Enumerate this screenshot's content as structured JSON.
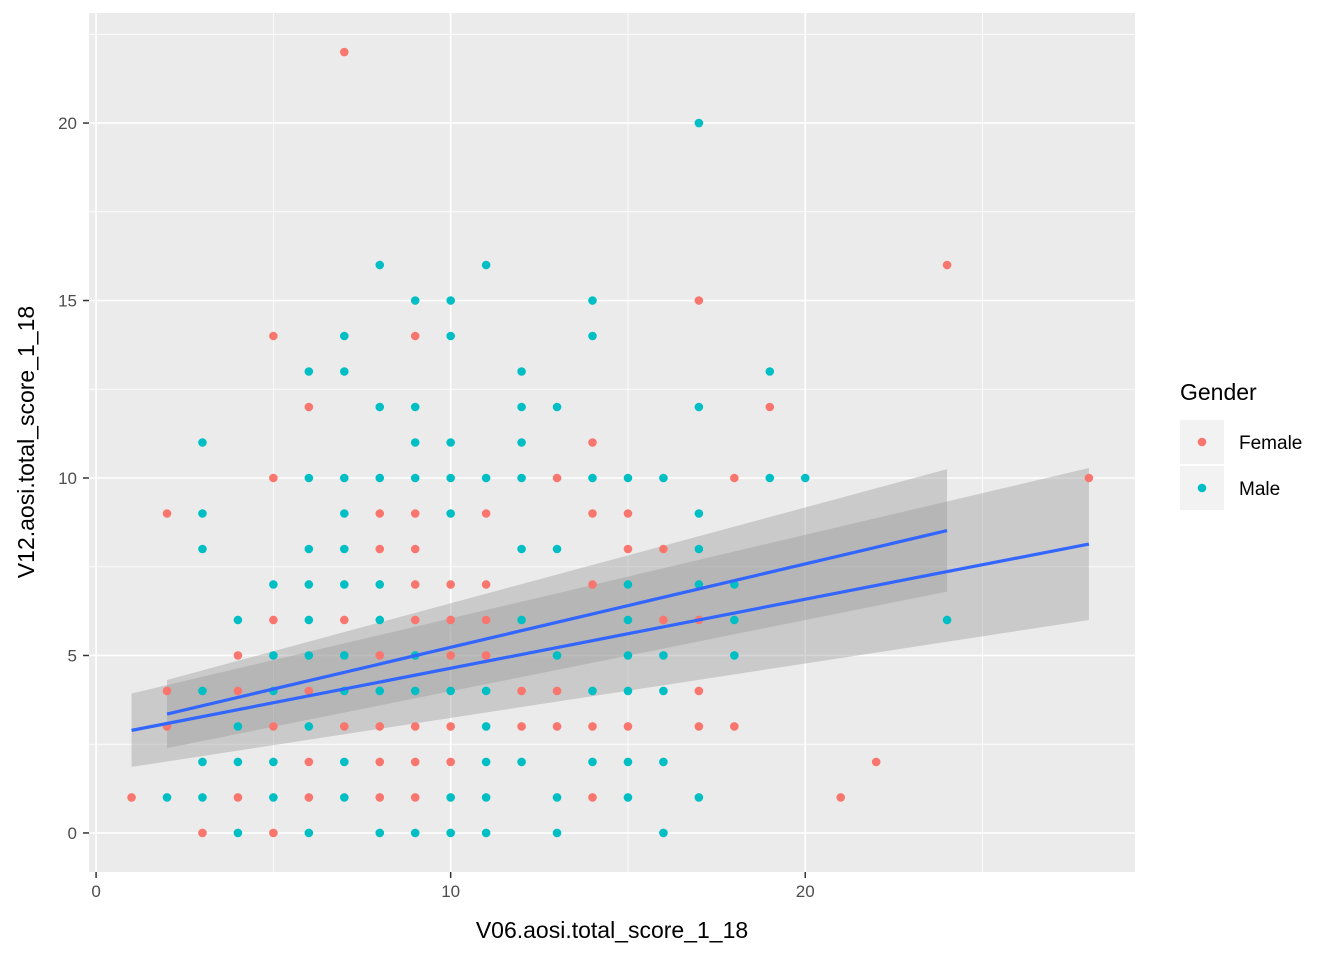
{
  "chart_data": {
    "type": "scatter",
    "xlabel": "V06.aosi.total_score_1_18",
    "ylabel": "V12.aosi.total_score_1_18",
    "xlim": [
      -0.2,
      29.3
    ],
    "ylim": [
      -1.1,
      23.1
    ],
    "x_ticks": [
      0,
      10,
      20
    ],
    "y_ticks": [
      0,
      5,
      10,
      15,
      20
    ],
    "x_tick_labels": [
      "0",
      "10",
      "20"
    ],
    "y_tick_labels": [
      "0",
      "5",
      "10",
      "15",
      "20"
    ],
    "grid": true,
    "legend": {
      "title": "Gender",
      "position": "right",
      "entries": [
        {
          "label": "Female",
          "color": "#F8766D"
        },
        {
          "label": "Male",
          "color": "#00BFC4"
        }
      ]
    },
    "colors": {
      "panel": "#EBEBEB",
      "grid_major": "#FFFFFF",
      "ribbon": "#999999",
      "fit_line": "#3366FF"
    },
    "series": [
      {
        "name": "Female",
        "color": "#F8766D",
        "points": [
          [
            1,
            1
          ],
          [
            2,
            9
          ],
          [
            2,
            4
          ],
          [
            2,
            3
          ],
          [
            3,
            0
          ],
          [
            4,
            5
          ],
          [
            4,
            4
          ],
          [
            4,
            1
          ],
          [
            5,
            14
          ],
          [
            5,
            10
          ],
          [
            5,
            6
          ],
          [
            5,
            3
          ],
          [
            5,
            0
          ],
          [
            6,
            12
          ],
          [
            6,
            4
          ],
          [
            6,
            2
          ],
          [
            6,
            1
          ],
          [
            7,
            22
          ],
          [
            7,
            6
          ],
          [
            7,
            3
          ],
          [
            8,
            9
          ],
          [
            8,
            8
          ],
          [
            8,
            5
          ],
          [
            8,
            3
          ],
          [
            8,
            2
          ],
          [
            8,
            1
          ],
          [
            9,
            14
          ],
          [
            9,
            9
          ],
          [
            9,
            8
          ],
          [
            9,
            7
          ],
          [
            9,
            6
          ],
          [
            9,
            3
          ],
          [
            9,
            2
          ],
          [
            9,
            1
          ],
          [
            10,
            7
          ],
          [
            10,
            6
          ],
          [
            10,
            5
          ],
          [
            10,
            3
          ],
          [
            10,
            2
          ],
          [
            11,
            9
          ],
          [
            11,
            7
          ],
          [
            11,
            6
          ],
          [
            11,
            5
          ],
          [
            12,
            4
          ],
          [
            12,
            3
          ],
          [
            13,
            10
          ],
          [
            13,
            4
          ],
          [
            13,
            3
          ],
          [
            14,
            11
          ],
          [
            14,
            9
          ],
          [
            14,
            7
          ],
          [
            14,
            3
          ],
          [
            14,
            1
          ],
          [
            15,
            9
          ],
          [
            15,
            8
          ],
          [
            15,
            3
          ],
          [
            16,
            8
          ],
          [
            16,
            6
          ],
          [
            17,
            15
          ],
          [
            17,
            6
          ],
          [
            17,
            4
          ],
          [
            17,
            3
          ],
          [
            18,
            10
          ],
          [
            18,
            3
          ],
          [
            19,
            12
          ],
          [
            21,
            1
          ],
          [
            22,
            2
          ],
          [
            24,
            16
          ],
          [
            28,
            10
          ]
        ],
        "fit": {
          "x": [
            1,
            28
          ],
          "y": [
            2.89,
            8.14
          ],
          "ci_lower": [
            1.86,
            6.0
          ],
          "ci_upper": [
            3.93,
            10.28
          ]
        }
      },
      {
        "name": "Male",
        "color": "#00BFC4",
        "points": [
          [
            2,
            1
          ],
          [
            3,
            11
          ],
          [
            3,
            9
          ],
          [
            3,
            8
          ],
          [
            3,
            4
          ],
          [
            3,
            2
          ],
          [
            3,
            1
          ],
          [
            4,
            6
          ],
          [
            4,
            3
          ],
          [
            4,
            2
          ],
          [
            4,
            0
          ],
          [
            5,
            7
          ],
          [
            5,
            5
          ],
          [
            5,
            4
          ],
          [
            5,
            2
          ],
          [
            5,
            1
          ],
          [
            6,
            13
          ],
          [
            6,
            10
          ],
          [
            6,
            8
          ],
          [
            6,
            7
          ],
          [
            6,
            6
          ],
          [
            6,
            5
          ],
          [
            6,
            3
          ],
          [
            6,
            0
          ],
          [
            7,
            14
          ],
          [
            7,
            13
          ],
          [
            7,
            10
          ],
          [
            7,
            9
          ],
          [
            7,
            8
          ],
          [
            7,
            7
          ],
          [
            7,
            5
          ],
          [
            7,
            4
          ],
          [
            7,
            2
          ],
          [
            7,
            1
          ],
          [
            8,
            16
          ],
          [
            8,
            12
          ],
          [
            8,
            10
          ],
          [
            8,
            7
          ],
          [
            8,
            6
          ],
          [
            8,
            4
          ],
          [
            8,
            0
          ],
          [
            9,
            15
          ],
          [
            9,
            12
          ],
          [
            9,
            11
          ],
          [
            9,
            10
          ],
          [
            9,
            5
          ],
          [
            9,
            4
          ],
          [
            9,
            0
          ],
          [
            10,
            15
          ],
          [
            10,
            14
          ],
          [
            10,
            11
          ],
          [
            10,
            10
          ],
          [
            10,
            9
          ],
          [
            10,
            4
          ],
          [
            10,
            1
          ],
          [
            10,
            0
          ],
          [
            11,
            16
          ],
          [
            11,
            10
          ],
          [
            11,
            4
          ],
          [
            11,
            3
          ],
          [
            11,
            2
          ],
          [
            11,
            1
          ],
          [
            11,
            0
          ],
          [
            12,
            13
          ],
          [
            12,
            12
          ],
          [
            12,
            11
          ],
          [
            12,
            10
          ],
          [
            12,
            8
          ],
          [
            12,
            6
          ],
          [
            12,
            2
          ],
          [
            13,
            12
          ],
          [
            13,
            8
          ],
          [
            13,
            5
          ],
          [
            13,
            1
          ],
          [
            13,
            0
          ],
          [
            14,
            15
          ],
          [
            14,
            14
          ],
          [
            14,
            10
          ],
          [
            14,
            4
          ],
          [
            14,
            2
          ],
          [
            15,
            10
          ],
          [
            15,
            7
          ],
          [
            15,
            6
          ],
          [
            15,
            5
          ],
          [
            15,
            4
          ],
          [
            15,
            2
          ],
          [
            15,
            1
          ],
          [
            16,
            10
          ],
          [
            16,
            5
          ],
          [
            16,
            4
          ],
          [
            16,
            2
          ],
          [
            16,
            0
          ],
          [
            17,
            20
          ],
          [
            17,
            12
          ],
          [
            17,
            9
          ],
          [
            17,
            8
          ],
          [
            17,
            7
          ],
          [
            17,
            1
          ],
          [
            18,
            7
          ],
          [
            18,
            6
          ],
          [
            18,
            5
          ],
          [
            19,
            13
          ],
          [
            19,
            10
          ],
          [
            20,
            10
          ],
          [
            24,
            6
          ]
        ],
        "fit": {
          "x": [
            2,
            24
          ],
          "y": [
            3.35,
            8.52
          ],
          "ci_lower": [
            2.39,
            6.8
          ],
          "ci_upper": [
            4.31,
            10.25
          ]
        }
      }
    ]
  }
}
